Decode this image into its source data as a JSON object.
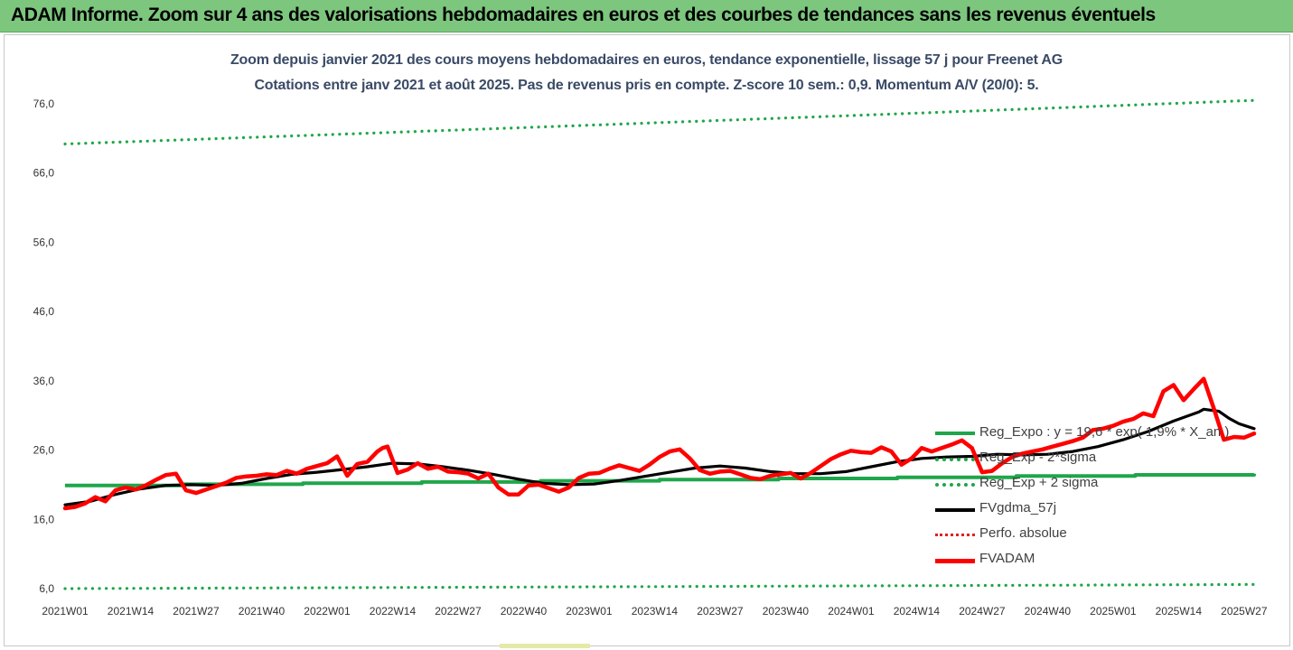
{
  "header": {
    "title": "ADAM Informe. Zoom sur 4 ans des valorisations hebdomadaires en euros et des courbes de tendances sans les revenus éventuels"
  },
  "chart_data": {
    "type": "line",
    "title": "Zoom depuis janvier 2021 des cours moyens hebdomadaires en euros, tendance exponentielle, lissage 57 j pour Freenet AG",
    "subtitle": "Cotations entre janv 2021 et août 2025.  Pas de revenus pris en compte. Z-score 10 sem.: 0,9. Momentum A/V (20/0): 5.",
    "xlabel": "",
    "ylabel": "",
    "ylim": [
      6,
      76
    ],
    "yticks": [
      "6,0",
      "16,0",
      "26,0",
      "36,0",
      "46,0",
      "56,0",
      "66,0",
      "76,0"
    ],
    "yticks_values": [
      6,
      16,
      26,
      36,
      46,
      56,
      66,
      76
    ],
    "xticks": [
      "2021W01",
      "2021W14",
      "2021W27",
      "2021W40",
      "2022W01",
      "2022W14",
      "2022W27",
      "2022W40",
      "2023W01",
      "2023W14",
      "2023W27",
      "2023W40",
      "2024W01",
      "2024W14",
      "2024W27",
      "2024W40",
      "2025W01",
      "2025W14",
      "2025W27"
    ],
    "x_week_index_range": [
      0,
      236
    ],
    "grid": false,
    "legend_position": "bottom-right",
    "series": [
      {
        "name": "Reg_Expo : y = 19,6 * exp( 1,9% *  X_an )",
        "color": "#1fa64a",
        "style": "solid",
        "x": [
          0,
          236
        ],
        "y": [
          20.9,
          22.6
        ],
        "step": true
      },
      {
        "name": "Reg_Exp - 2*sigma",
        "color": "#1fa64a",
        "style": "dotted",
        "x": [
          0,
          236
        ],
        "y": [
          6.0,
          6.6
        ]
      },
      {
        "name": "Reg_Exp + 2 sigma",
        "color": "#1fa64a",
        "style": "dotted",
        "x": [
          0,
          236
        ],
        "y": [
          70.2,
          76.5
        ]
      },
      {
        "name": "FVgdma_57j",
        "color": "#000000",
        "style": "solid",
        "x": [
          0,
          5,
          10,
          15,
          20,
          25,
          30,
          35,
          40,
          45,
          50,
          55,
          60,
          65,
          70,
          75,
          80,
          85,
          90,
          95,
          100,
          105,
          110,
          115,
          120,
          125,
          130,
          135,
          140,
          145,
          150,
          155,
          160,
          165,
          170,
          175,
          180,
          185,
          190,
          195,
          200,
          205,
          210,
          215,
          220,
          225,
          230,
          236
        ],
        "y": [
          18.1,
          18.6,
          19.6,
          20.4,
          20.9,
          21.0,
          20.9,
          21.2,
          21.9,
          22.5,
          22.8,
          23.2,
          23.6,
          24.1,
          24.0,
          23.6,
          23.1,
          22.5,
          21.8,
          21.2,
          21.0,
          21.1,
          21.6,
          22.2,
          22.8,
          23.4,
          23.7,
          23.4,
          22.9,
          22.6,
          22.6,
          22.9,
          23.6,
          24.3,
          24.8,
          25.0,
          25.1,
          25.4,
          25.3,
          25.4,
          25.8,
          26.5,
          27.5,
          28.7,
          30.2,
          31.5,
          31.8,
          29.2
        ],
        "last_points": [
          [
            226,
            31.9
          ],
          [
            229,
            31.6
          ],
          [
            231,
            30.6
          ],
          [
            233,
            29.8
          ],
          [
            236,
            29.1
          ]
        ]
      },
      {
        "name": "Perfo. absolue",
        "color": "#e02020",
        "style": "dotted",
        "x": [],
        "y": []
      },
      {
        "name": "FVADAM",
        "color": "#ff0000",
        "style": "solid",
        "x": [
          0,
          2,
          4,
          6,
          8,
          10,
          12,
          14,
          16,
          18,
          20,
          22,
          24,
          26,
          28,
          30,
          32,
          34,
          36,
          38,
          40,
          42,
          44,
          46,
          48,
          50,
          52,
          54,
          56,
          58,
          60,
          62,
          63,
          64,
          66,
          68,
          70,
          72,
          74,
          76,
          78,
          80,
          82,
          84,
          86,
          88,
          90,
          92,
          94,
          96,
          98,
          100,
          102,
          104,
          106,
          108,
          110,
          112,
          114,
          116,
          118,
          120,
          122,
          124,
          126,
          128,
          130,
          132,
          134,
          136,
          138,
          140,
          142,
          144,
          146,
          148,
          150,
          152,
          154,
          156,
          158,
          160,
          162,
          164,
          166,
          168,
          170,
          172,
          174,
          176,
          178,
          180,
          182,
          184,
          186,
          188,
          190,
          192,
          194,
          196,
          198,
          200,
          202,
          204,
          206,
          208,
          210,
          212,
          214,
          216,
          218,
          220,
          222,
          224,
          226,
          228,
          230,
          232,
          234,
          236
        ],
        "y": [
          17.6,
          17.8,
          18.3,
          19.2,
          18.6,
          20.2,
          20.6,
          20.3,
          20.9,
          21.7,
          22.4,
          22.6,
          20.2,
          19.8,
          20.3,
          20.8,
          21.3,
          22.0,
          22.2,
          22.3,
          22.5,
          22.4,
          23.0,
          22.6,
          23.3,
          23.7,
          24.1,
          25.1,
          22.3,
          24.0,
          24.3,
          25.8,
          26.3,
          26.5,
          22.7,
          23.2,
          24.1,
          23.3,
          23.6,
          22.9,
          22.8,
          22.6,
          21.9,
          22.6,
          20.6,
          19.6,
          19.6,
          20.9,
          21.0,
          20.5,
          20.0,
          20.6,
          22.0,
          22.6,
          22.7,
          23.3,
          23.8,
          23.4,
          23.0,
          23.9,
          25.0,
          25.8,
          26.1,
          24.8,
          23.1,
          22.6,
          22.9,
          23.0,
          22.5,
          22.0,
          21.8,
          22.3,
          22.5,
          22.7,
          21.9,
          22.7,
          23.7,
          24.7,
          25.4,
          25.9,
          25.7,
          25.6,
          26.4,
          25.8,
          23.9,
          24.8,
          26.3,
          25.8,
          26.3,
          26.8,
          27.4,
          26.3,
          22.8,
          23.0,
          24.1,
          25.0,
          25.5,
          25.8,
          26.1,
          26.5,
          26.9,
          27.3,
          27.8,
          28.9,
          29.1,
          29.5,
          30.1,
          30.5,
          31.3,
          30.9,
          34.5,
          35.4,
          33.2,
          34.8,
          36.3,
          32.0,
          27.5,
          27.9,
          27.8,
          28.4
        ]
      }
    ]
  },
  "legend": {
    "items": [
      "Reg_Expo : y = 19,6 * exp( 1,9% *  X_an )",
      "Reg_Exp - 2*sigma",
      "Reg_Exp + 2 sigma",
      "FVgdma_57j",
      "Perfo. absolue",
      "FVADAM"
    ]
  }
}
